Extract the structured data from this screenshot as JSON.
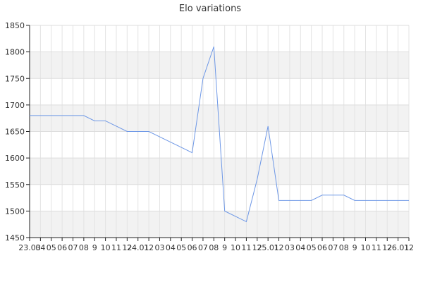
{
  "chart_data": {
    "type": "line",
    "title": "Elo variations",
    "xlabel": "",
    "ylabel": "",
    "ylim": [
      1450,
      1850
    ],
    "y_ticks": [
      1450,
      1500,
      1550,
      1600,
      1650,
      1700,
      1750,
      1800,
      1850
    ],
    "x_tick_labels": [
      "23.03",
      "04",
      "05",
      "06",
      "07",
      "08",
      "9",
      "10",
      "11",
      "12",
      "24.01",
      "12",
      "03",
      "04",
      "05",
      "06",
      "07",
      "08",
      "9",
      "10",
      "11",
      "12",
      "25.01",
      "12",
      "03",
      "04",
      "05",
      "06",
      "07",
      "08",
      "9",
      "10",
      "11",
      "12",
      "26.01",
      "12"
    ],
    "grid": true,
    "line_color": "#6d97e6",
    "band_color": "#f2f2f2",
    "series": [
      {
        "values": [
          1680,
          1680,
          1680,
          1680,
          1680,
          1680,
          1670,
          1670,
          1660,
          1650,
          1650,
          1650,
          1640,
          1630,
          1620,
          1610,
          1750,
          1810,
          1500,
          1490,
          1480,
          1560,
          1660,
          1520,
          1520,
          1520,
          1520,
          1530,
          1530,
          1530,
          1520,
          1520,
          1520,
          1520,
          1520,
          1520
        ]
      }
    ]
  }
}
